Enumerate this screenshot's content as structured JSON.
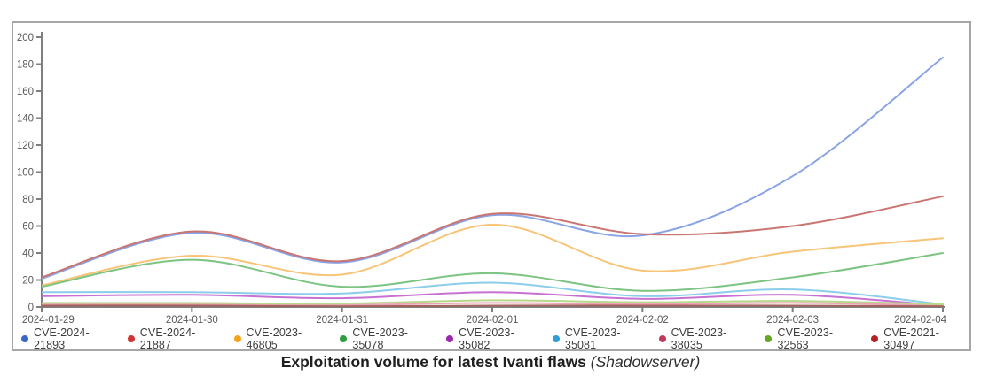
{
  "caption": {
    "title": "Exploitation volume for latest Ivanti flaws",
    "source": " (Shadowserver)"
  },
  "chart_data": {
    "type": "line",
    "title": "Exploitation volume for latest Ivanti flaws (Shadowserver)",
    "x": [
      "2024-01-29",
      "2024-01-30",
      "2024-01-31",
      "2024-02-01",
      "2024-02-02",
      "2024-02-03",
      "2024-02-04"
    ],
    "xlabel": "",
    "ylabel": "",
    "ylim": [
      0,
      200
    ],
    "ytick_step": 20,
    "grid": false,
    "legend_position": "bottom",
    "axis_color": "#7f7f7f",
    "tick_label_color": "#595959",
    "series": [
      {
        "name": "CVE-2024-21893",
        "dot": "#3a66c4",
        "line": "#88a4e6",
        "values": [
          21,
          55,
          33,
          68,
          53,
          97,
          185
        ]
      },
      {
        "name": "CVE-2024-21887",
        "dot": "#d13434",
        "line": "#c97672",
        "values": [
          22,
          56,
          34,
          69,
          54,
          60,
          82
        ]
      },
      {
        "name": "CVE-2023-46805",
        "dot": "#f9a11b",
        "line": "#f7c478",
        "values": [
          16,
          38,
          24,
          61,
          27,
          41,
          51
        ]
      },
      {
        "name": "CVE-2023-35078",
        "dot": "#2f9e41",
        "line": "#7cc482",
        "values": [
          15,
          35,
          15,
          25,
          12,
          22,
          40
        ]
      },
      {
        "name": "CVE-2023-35082",
        "dot": "#9c27b0",
        "line": "#c771d3",
        "values": [
          8,
          9,
          6.5,
          11,
          6,
          9,
          1
        ]
      },
      {
        "name": "CVE-2023-35081",
        "dot": "#2b9fd8",
        "line": "#8bcdea",
        "values": [
          11,
          11,
          10,
          18,
          8,
          13,
          2
        ]
      },
      {
        "name": "CVE-2023-38035",
        "dot": "#c2395b",
        "line": "#eda3b5",
        "values": [
          2,
          2,
          1.5,
          3,
          2,
          3,
          1
        ]
      },
      {
        "name": "CVE-2023-32563",
        "dot": "#63a824",
        "line": "#b6d98c",
        "values": [
          3,
          3,
          2.5,
          5,
          3.5,
          4.5,
          2
        ]
      },
      {
        "name": "CVE-2021-30497",
        "dot": "#b22222",
        "line": "#a3625c",
        "values": [
          1,
          1,
          0.5,
          1,
          1,
          1,
          0.5
        ]
      }
    ]
  }
}
